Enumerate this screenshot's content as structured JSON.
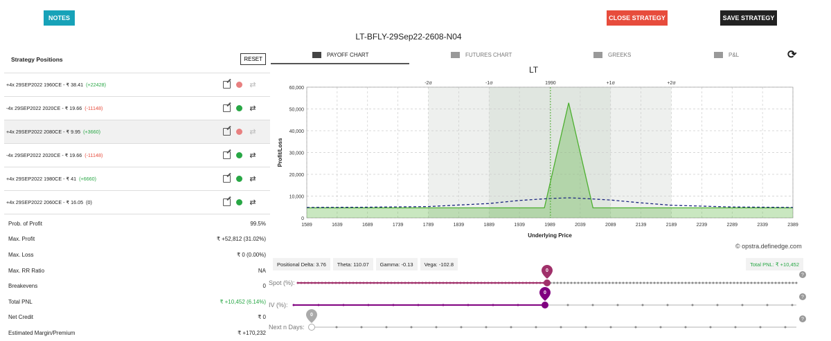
{
  "toolbar": {
    "notes": "NOTES",
    "close": "CLOSE STRATEGY",
    "save": "SAVE STRATEGY"
  },
  "strategy_name": "LT-BFLY-29Sep22-2608-N04",
  "positions_panel": {
    "title": "Strategy Positions",
    "reset": "RESET",
    "rows": [
      {
        "text": "+4x  29SEP2022  1960CE  - ₹ 38.41",
        "pnl": "(+22428)",
        "tone": "g",
        "active": false,
        "highlight": false
      },
      {
        "text": "-4x  29SEP2022  2020CE  - ₹ 19.66",
        "pnl": "(-11148)",
        "tone": "r",
        "active": true,
        "highlight": false
      },
      {
        "text": "+4x  29SEP2022  2080CE  - ₹ 9.95",
        "pnl": "(+3660)",
        "tone": "g",
        "active": false,
        "highlight": true
      },
      {
        "text": "-4x  29SEP2022  2020CE  - ₹ 19.66",
        "pnl": "(-11148)",
        "tone": "r",
        "active": true,
        "highlight": false
      },
      {
        "text": "+4x  29SEP2022  1980CE  - ₹ 41",
        "pnl": "(+6660)",
        "tone": "g",
        "active": true,
        "highlight": false
      },
      {
        "text": "+4x  29SEP2022  2060CE  - ₹ 16.05",
        "pnl": "(0)",
        "tone": "n",
        "active": true,
        "highlight": false
      }
    ]
  },
  "stats": [
    {
      "label": "Prob. of Profit",
      "value": "99.5%",
      "tone": ""
    },
    {
      "label": "Max. Profit",
      "value": "₹ +52,812 (31.02%)",
      "tone": ""
    },
    {
      "label": "Max. Loss",
      "value": "₹ 0 (0.00%)",
      "tone": ""
    },
    {
      "label": "Max. RR Ratio",
      "value": "NA",
      "tone": ""
    },
    {
      "label": "Breakevens",
      "value": "0",
      "tone": ""
    },
    {
      "label": "Total PNL",
      "value": "₹ +10,452 (6.14%)",
      "tone": "g"
    },
    {
      "label": "Net Credit",
      "value": "₹ 0",
      "tone": ""
    },
    {
      "label": "Estimated Margin/Premium",
      "value": "₹ +170,232",
      "tone": ""
    }
  ],
  "tabs": [
    "PAYOFF CHART",
    "FUTURES CHART",
    "GREEKS",
    "P&L"
  ],
  "greeks": {
    "delta": "Positional Delta: 3.76",
    "theta": "Theta: 110.07",
    "gamma": "Gamma: -0.13",
    "vega": "Vega: -102.8",
    "total_pnl": "Total PNL: ₹ +10,452"
  },
  "watermark": "© opstra.definedge.com",
  "sliders": [
    {
      "label": "Spot (%):",
      "value": "0",
      "fraction": 0.5,
      "color": "#a0306a"
    },
    {
      "label": "IV (%):",
      "value": "0",
      "fraction": 0.5,
      "color": "#800080"
    },
    {
      "label": "Next n Days:",
      "value": "0",
      "fraction": 0.0,
      "color": "#aaaaaa"
    }
  ],
  "chart_data": {
    "type": "area",
    "title": "LT",
    "xlabel": "Underlying Price",
    "ylabel": "Profit/Loss",
    "xlim": [
      1589,
      2389
    ],
    "ylim": [
      0,
      60000
    ],
    "xticks": [
      1589,
      1639,
      1689,
      1739,
      1789,
      1839,
      1889,
      1939,
      1989,
      2039,
      2089,
      2139,
      2189,
      2239,
      2289,
      2339,
      2389
    ],
    "yticks": [
      0,
      10000,
      20000,
      30000,
      40000,
      50000,
      60000
    ],
    "ytick_labels": [
      "0",
      "10,000",
      "20,000",
      "30,000",
      "40,000",
      "50,000",
      "60,000"
    ],
    "top_ticks": [
      {
        "label": "-2σ",
        "x": 1789
      },
      {
        "label": "-1σ",
        "x": 1889
      },
      {
        "label": "1990",
        "x": 1990
      },
      {
        "label": "+1σ",
        "x": 2089
      },
      {
        "label": "+2σ",
        "x": 2189
      }
    ],
    "bands": [
      {
        "from": 1789,
        "to": 2189,
        "color": "#eef0ee"
      },
      {
        "from": 1889,
        "to": 2089,
        "color": "#e0e6e0"
      }
    ],
    "series": [
      {
        "style": "expiry",
        "color": "#4caf2f",
        "x": [
          1589,
          1980,
          2020,
          2060,
          2389
        ],
        "y": [
          4600,
          4600,
          52812,
          4600,
          4600
        ]
      },
      {
        "style": "target",
        "color": "#1a237e",
        "x": [
          1589,
          1689,
          1789,
          1889,
          1939,
          1989,
          2020,
          2039,
          2089,
          2139,
          2189,
          2289,
          2389
        ],
        "y": [
          4800,
          4900,
          5200,
          6600,
          8000,
          8900,
          9200,
          9000,
          8200,
          6900,
          5800,
          5000,
          4800
        ]
      }
    ]
  }
}
